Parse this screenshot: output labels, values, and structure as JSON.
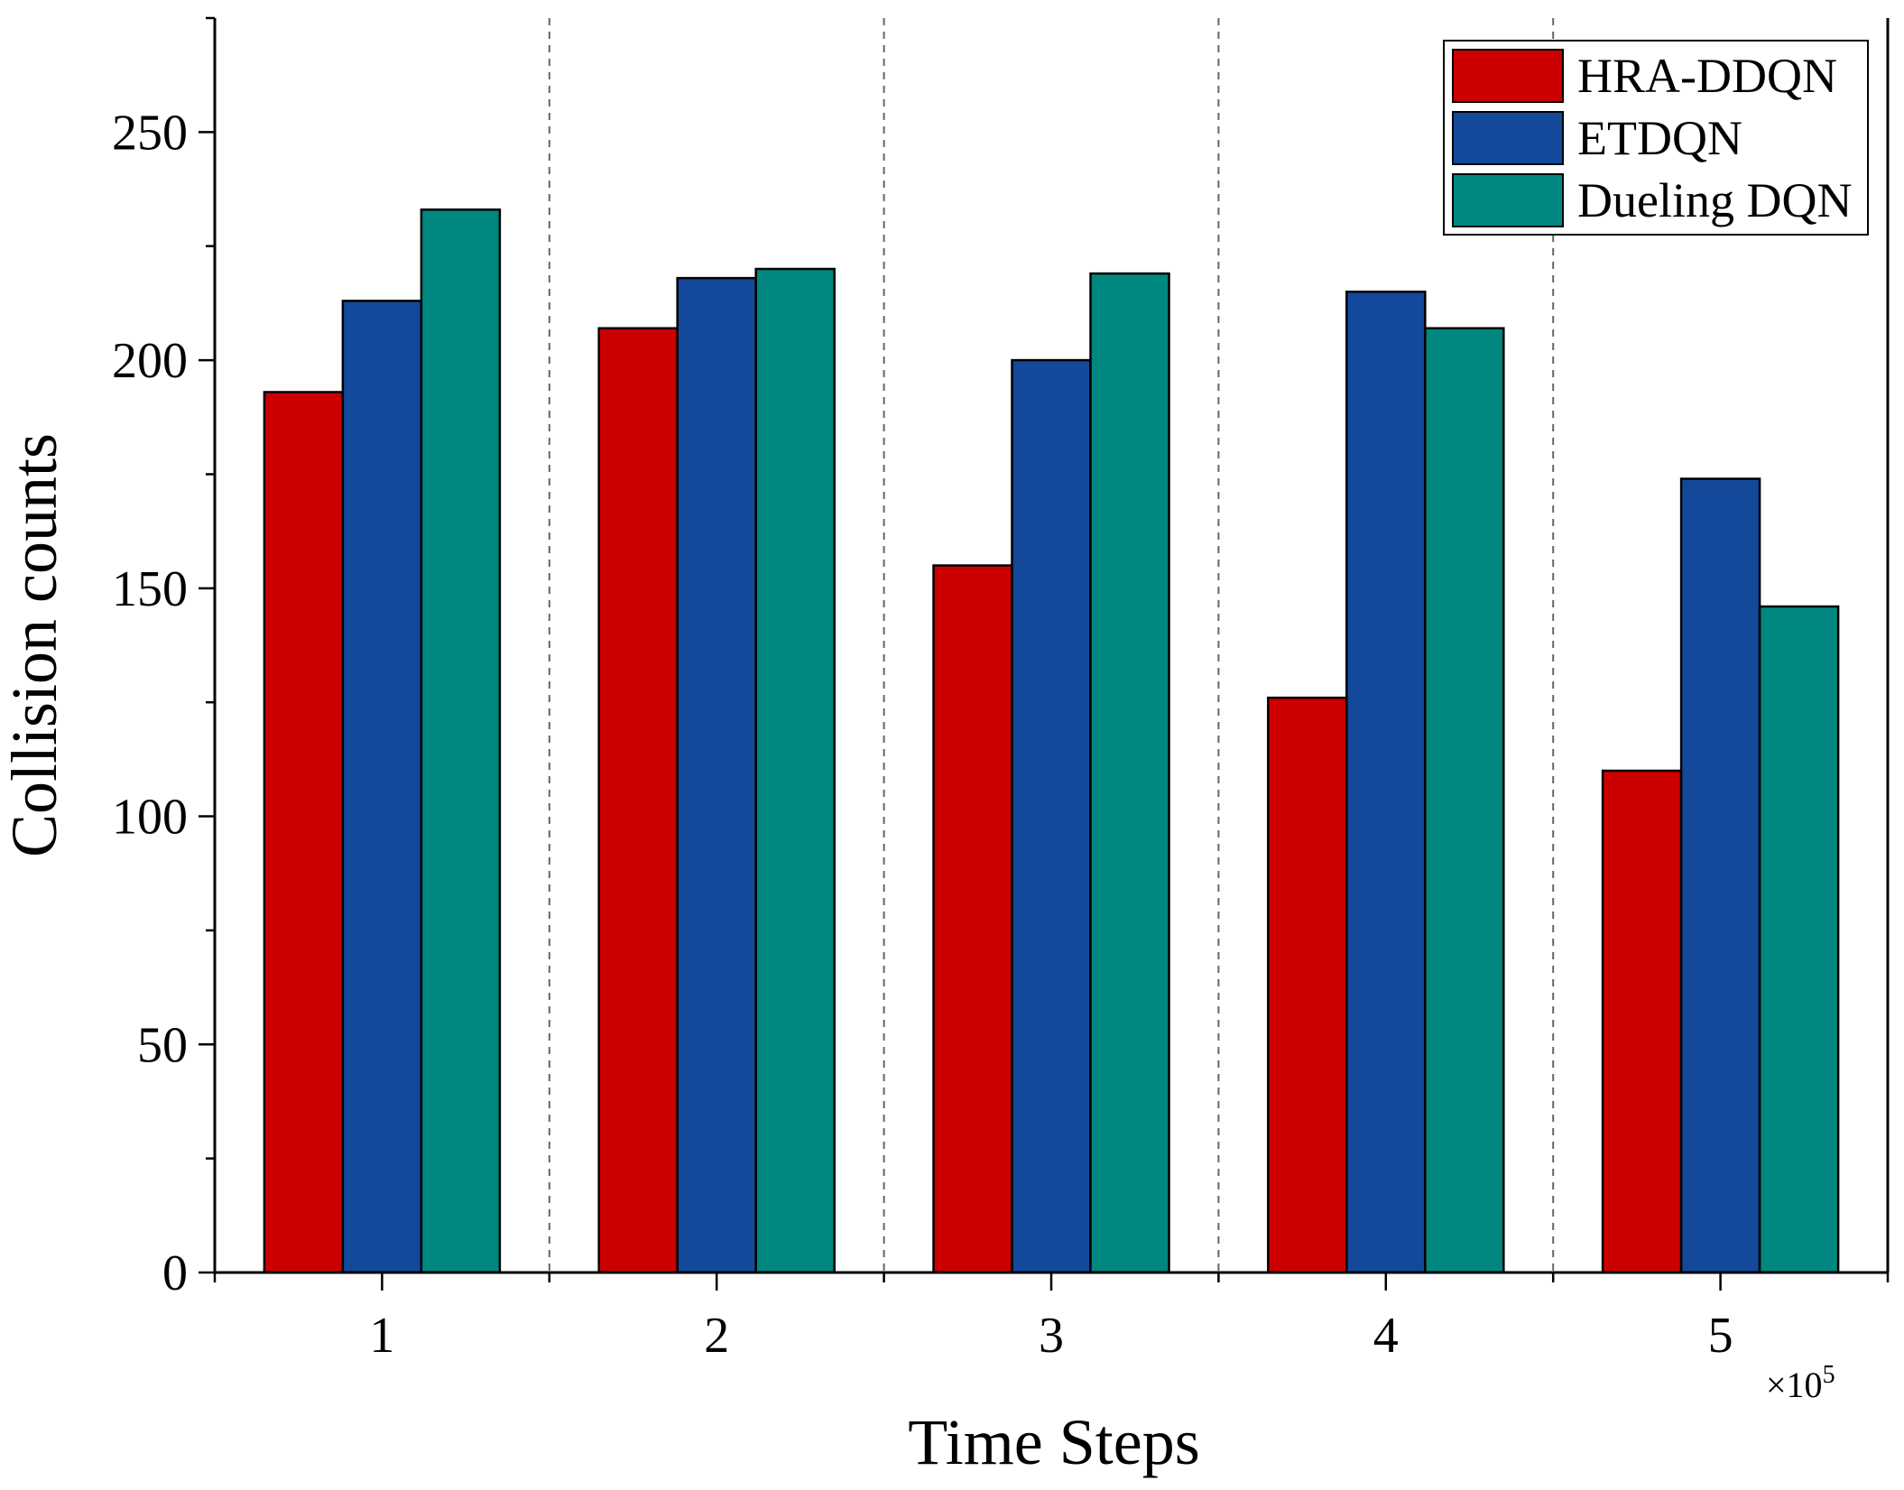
{
  "chart_data": {
    "type": "bar",
    "title": "",
    "xlabel": "Time Steps",
    "ylabel": "Collision counts",
    "x_multiplier": "×10",
    "x_multiplier_exp": "5",
    "categories": [
      "1",
      "2",
      "3",
      "4",
      "5"
    ],
    "series": [
      {
        "name": "HRA-DDQN",
        "color": "#cc0000",
        "values": [
          193,
          207,
          155,
          126,
          110
        ]
      },
      {
        "name": "ETDQN",
        "color": "#14489b",
        "values": [
          213,
          218,
          200,
          215,
          174
        ]
      },
      {
        "name": "Dueling DQN",
        "color": "#00877f",
        "values": [
          233,
          220,
          219,
          207,
          146
        ]
      }
    ],
    "ylim": [
      0,
      275
    ],
    "yticks": [
      0,
      50,
      100,
      150,
      200,
      250
    ],
    "grid": false,
    "group_separators": "dashed",
    "legend_position": "top-right"
  }
}
